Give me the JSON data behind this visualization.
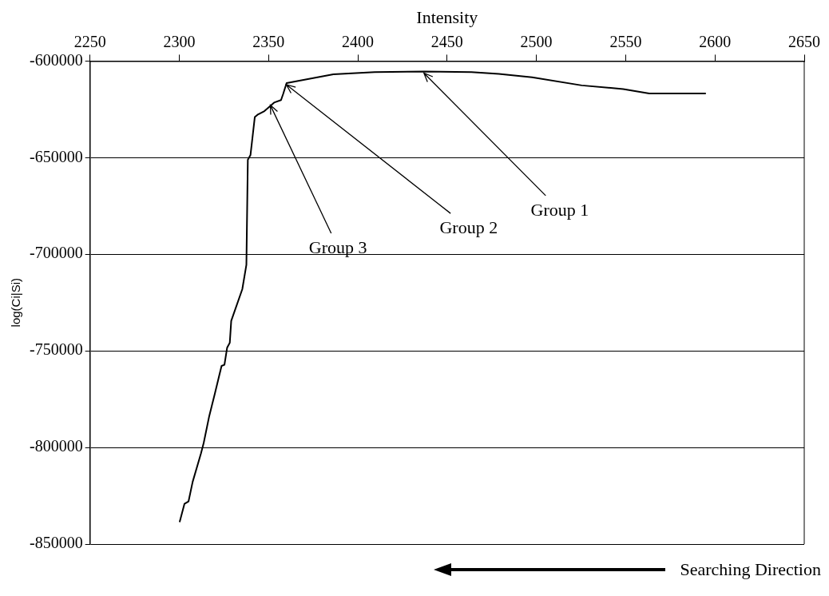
{
  "chart_data": {
    "type": "line",
    "xlabel": "Intensity",
    "ylabel": "log(Ci|Si)",
    "xlim": [
      2250,
      2650
    ],
    "xticks": [
      2250,
      2300,
      2350,
      2400,
      2450,
      2500,
      2550,
      2600,
      2650
    ],
    "ylim": [
      -850000,
      -600000
    ],
    "yticks": [
      -850000,
      -800000,
      -750000,
      -700000,
      -650000,
      -600000
    ],
    "grid": "y",
    "marker": "none",
    "line_style": "solid",
    "legend": false,
    "series": [
      {
        "color": "#000000",
        "x": [
          2300.2,
          2302.9,
          2305.2,
          2307.5,
          2312.1,
          2313.7,
          2316.8,
          2319.9,
          2322.2,
          2323.7,
          2325.3,
          2326.8,
          2328.3,
          2329.1,
          2335.3,
          2337.6,
          2338.4,
          2339.9,
          2342.3,
          2343.8,
          2347.7,
          2350.8,
          2353.1,
          2357,
          2358.2,
          2360.1,
          2386.3,
          2409.5,
          2437.3,
          2463.6,
          2479,
          2497.6,
          2525.4,
          2548.6,
          2563.2,
          2594.9
        ],
        "values": [
          -838600,
          -829200,
          -827900,
          -817800,
          -803300,
          -797600,
          -783700,
          -772300,
          -763500,
          -757800,
          -757200,
          -748400,
          -745800,
          -734500,
          -718100,
          -705400,
          -651100,
          -648600,
          -629000,
          -627800,
          -625900,
          -623400,
          -621500,
          -620200,
          -617000,
          -611400,
          -606900,
          -605700,
          -605400,
          -605700,
          -606700,
          -608400,
          -612600,
          -614500,
          -616800,
          -616800
        ]
      }
    ],
    "annotations": [
      {
        "text": "Group 1",
        "x": 2437,
        "y": -605400
      },
      {
        "text": "Group 2",
        "x": 2360,
        "y": -611400
      },
      {
        "text": "Group 3",
        "x": 2351,
        "y": -622000
      },
      "Searching Direction"
    ]
  }
}
